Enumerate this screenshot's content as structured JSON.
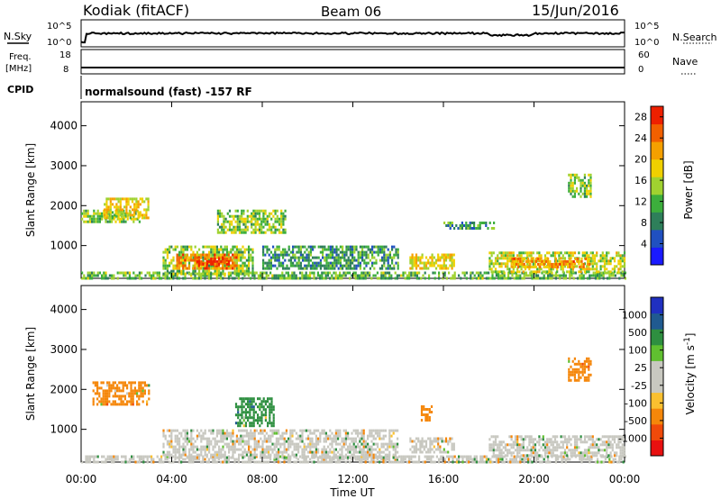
{
  "header": {
    "station": "Kodiak (fitACF)",
    "beam": "Beam 06",
    "date": "15/Jun/2016"
  },
  "noise_panel": {
    "left_label": "N.Sky",
    "right_label": "N.Search",
    "tick_top": "10^5",
    "tick_bottom": "10^0"
  },
  "freq_panel": {
    "left_label_1": "Freq.",
    "left_label_2": "[MHz]",
    "right_label": "Nave",
    "left_tick_top": "18",
    "left_tick_bottom": "8",
    "right_tick_top": "60",
    "right_tick_bottom": "0"
  },
  "cpid_panel": {
    "label": "CPID",
    "text": "normalsound (fast) -157 RF"
  },
  "colors": {
    "power_scale": [
      "#1a1aff",
      "#2050c0",
      "#2e7f5a",
      "#3cae3c",
      "#a0d230",
      "#f0d000",
      "#f5a000",
      "#f26000",
      "#ee2000"
    ],
    "velocity_scale": [
      "#e81010",
      "#f04a0a",
      "#f5870a",
      "#fac030",
      "#c8c8c0",
      "#c8c8c0",
      "#60c030",
      "#2e8f40",
      "#205a90",
      "#2030c0"
    ]
  },
  "chart_data": [
    {
      "type": "heatmap",
      "title": "",
      "xlabel": "Time UT",
      "ylabel": "Slant Range [km]",
      "x_ticks": [
        "00:00",
        "04:00",
        "08:00",
        "12:00",
        "16:00",
        "20:00",
        "00:00"
      ],
      "y_ticks": [
        1000,
        2000,
        3000,
        4000
      ],
      "colorbar": {
        "label": "Power [dB]",
        "ticks": [
          4,
          8,
          12,
          16,
          20,
          24,
          28
        ],
        "range": [
          0,
          30
        ]
      },
      "regions": [
        {
          "t0": 0.0,
          "t1": 2.6,
          "r0": 1600,
          "r1": 1900,
          "value": 14
        },
        {
          "t0": 1.0,
          "t1": 3.0,
          "r0": 1700,
          "r1": 2200,
          "value": 18
        },
        {
          "t0": 0.0,
          "t1": 24.0,
          "r0": 180,
          "r1": 350,
          "value": 12
        },
        {
          "t0": 3.6,
          "t1": 7.6,
          "r0": 300,
          "r1": 1000,
          "value": 14
        },
        {
          "t0": 4.2,
          "t1": 7.0,
          "r0": 450,
          "r1": 800,
          "value": 24
        },
        {
          "t0": 5.0,
          "t1": 6.5,
          "r0": 500,
          "r1": 700,
          "value": 28
        },
        {
          "t0": 6.0,
          "t1": 9.0,
          "r0": 1300,
          "r1": 1900,
          "value": 14
        },
        {
          "t0": 8.0,
          "t1": 14.0,
          "r0": 400,
          "r1": 1000,
          "value": 10
        },
        {
          "t0": 14.5,
          "t1": 16.5,
          "r0": 450,
          "r1": 800,
          "value": 18
        },
        {
          "t0": 16.0,
          "t1": 18.2,
          "r0": 1400,
          "r1": 1600,
          "value": 10
        },
        {
          "t0": 18.0,
          "t1": 24.0,
          "r0": 350,
          "r1": 850,
          "value": 16
        },
        {
          "t0": 19.0,
          "t1": 22.5,
          "r0": 450,
          "r1": 700,
          "value": 22
        },
        {
          "t0": 21.5,
          "t1": 22.5,
          "r0": 2200,
          "r1": 2800,
          "value": 14
        }
      ]
    },
    {
      "type": "heatmap",
      "title": "",
      "xlabel": "Time UT",
      "ylabel": "Slant Range [km]",
      "x_ticks": [
        "00:00",
        "04:00",
        "08:00",
        "12:00",
        "16:00",
        "20:00",
        "00:00"
      ],
      "y_ticks": [
        1000,
        2000,
        3000,
        4000
      ],
      "colorbar": {
        "label": "Velocity [m s^-1]",
        "ticks": [
          "1000",
          "500",
          "100",
          "25",
          "-25",
          "-100",
          "-500",
          "-1000"
        ],
        "range": [
          -1200,
          1200
        ]
      },
      "regions": [
        {
          "t0": 0.0,
          "t1": 24.0,
          "r0": 180,
          "r1": 350,
          "value": 0
        },
        {
          "t0": 3.6,
          "t1": 14.0,
          "r0": 300,
          "r1": 1000,
          "value": 0
        },
        {
          "t0": 0.5,
          "t1": 3.0,
          "r0": 1600,
          "r1": 2200,
          "value": -200
        },
        {
          "t0": 6.8,
          "t1": 8.5,
          "r0": 1100,
          "r1": 1800,
          "value": 300
        },
        {
          "t0": 14.5,
          "t1": 16.5,
          "r0": 450,
          "r1": 800,
          "value": 0
        },
        {
          "t0": 15.0,
          "t1": 15.5,
          "r0": 1200,
          "r1": 1600,
          "value": -150
        },
        {
          "t0": 18.0,
          "t1": 24.0,
          "r0": 350,
          "r1": 850,
          "value": 0
        },
        {
          "t0": 21.5,
          "t1": 22.5,
          "r0": 2200,
          "r1": 2800,
          "value": -300
        }
      ]
    }
  ]
}
